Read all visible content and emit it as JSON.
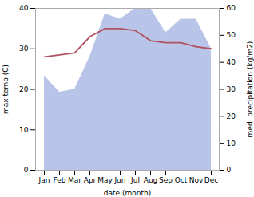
{
  "chart_data": {
    "type": "line",
    "xlabel": "date (month)",
    "ylabel": "max temp (C)",
    "y2label": "med. precipitation (kg/m2)",
    "categories": [
      "Jan",
      "Feb",
      "Mar",
      "Apr",
      "May",
      "Jun",
      "Jul",
      "Aug",
      "Sep",
      "Oct",
      "Nov",
      "Dec"
    ],
    "series": [
      {
        "type": "area",
        "axis": "y2",
        "color": "#b8c4e8",
        "values": [
          35,
          29,
          30,
          42,
          58,
          56,
          60,
          60,
          51,
          56,
          56,
          45
        ]
      },
      {
        "type": "line",
        "color": "#b05060",
        "values": [
          28,
          28.5,
          29,
          33,
          35,
          35,
          34.5,
          32,
          31.5,
          31.5,
          30.5,
          30
        ]
      }
    ],
    "ylim": [
      0,
      40
    ],
    "yticks": [
      0,
      10,
      20,
      30,
      40
    ],
    "y2lim": [
      0,
      60
    ],
    "y2ticks": [
      0,
      10,
      20,
      30,
      40,
      50,
      60
    ],
    "grid": true
  }
}
